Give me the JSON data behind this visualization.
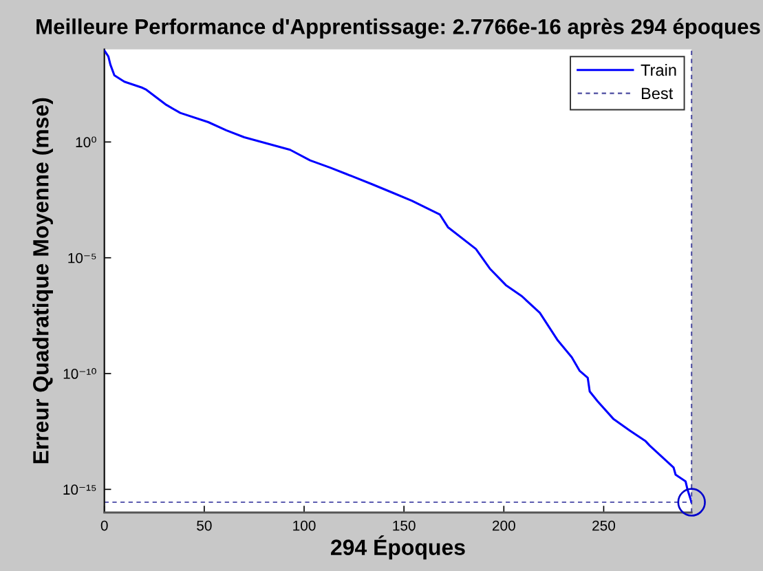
{
  "chart_data": {
    "type": "line",
    "title": "Meilleure Performance d'Apprentissage: 2.7766e-16 après 294 époques",
    "xlabel": "294 Époques",
    "ylabel": "Erreur Quadratique Moyenne (mse)",
    "log": "y",
    "xlim": [
      0,
      294
    ],
    "ylim": [
      1e-16,
      10000
    ],
    "xticks": [
      0,
      50,
      100,
      150,
      200,
      250
    ],
    "yticks": [
      {
        "value": 1,
        "label": "10⁰"
      },
      {
        "value": 1e-05,
        "label": "10⁻⁵"
      },
      {
        "value": 1e-10,
        "label": "10⁻¹⁰"
      },
      {
        "value": 1e-15,
        "label": "10⁻¹⁵"
      }
    ],
    "legend": "top right",
    "series": [
      {
        "name": "Train",
        "color": "#0000ff",
        "line_style": "solid",
        "x": [
          0,
          2,
          3,
          5,
          10,
          19,
          21,
          31,
          38,
          52,
          61,
          70,
          93,
          103,
          113,
          121,
          134,
          144,
          154,
          168,
          172,
          186,
          193,
          201,
          209,
          218,
          227,
          234,
          238,
          242,
          243,
          247,
          255,
          263,
          271,
          273,
          285,
          286,
          291,
          292,
          294
        ],
        "values": [
          9000,
          4900,
          2200,
          750,
          400,
          220,
          180,
          40,
          18,
          7.2,
          3.2,
          1.6,
          0.46,
          0.16,
          0.078,
          0.042,
          0.015,
          0.0066,
          0.0029,
          0.00073,
          0.00021,
          2.4e-05,
          3.4e-06,
          6.6e-07,
          2.2e-07,
          4.2e-08,
          2.7e-09,
          5.1e-10,
          1.3e-10,
          6.6e-11,
          1.7e-11,
          6.3e-12,
          1.07e-12,
          3.5e-13,
          1.2e-13,
          7.8e-14,
          8.7e-15,
          4.3e-15,
          2.2e-15,
          9.5e-16,
          2.7766e-16
        ]
      },
      {
        "type": "scatter",
        "color": "#0000cc",
        "marker": "circle",
        "x": [
          294
        ],
        "values": [
          2.7766e-16
        ]
      }
    ],
    "ref_lines": [
      {
        "axis": "x",
        "value": 294,
        "label": "Best",
        "color": "#4b4ba0",
        "line_style": "dashed"
      },
      {
        "axis": "y",
        "value": 2.7766e-16,
        "color": "#5c5cb0",
        "line_style": "dashed"
      }
    ]
  }
}
